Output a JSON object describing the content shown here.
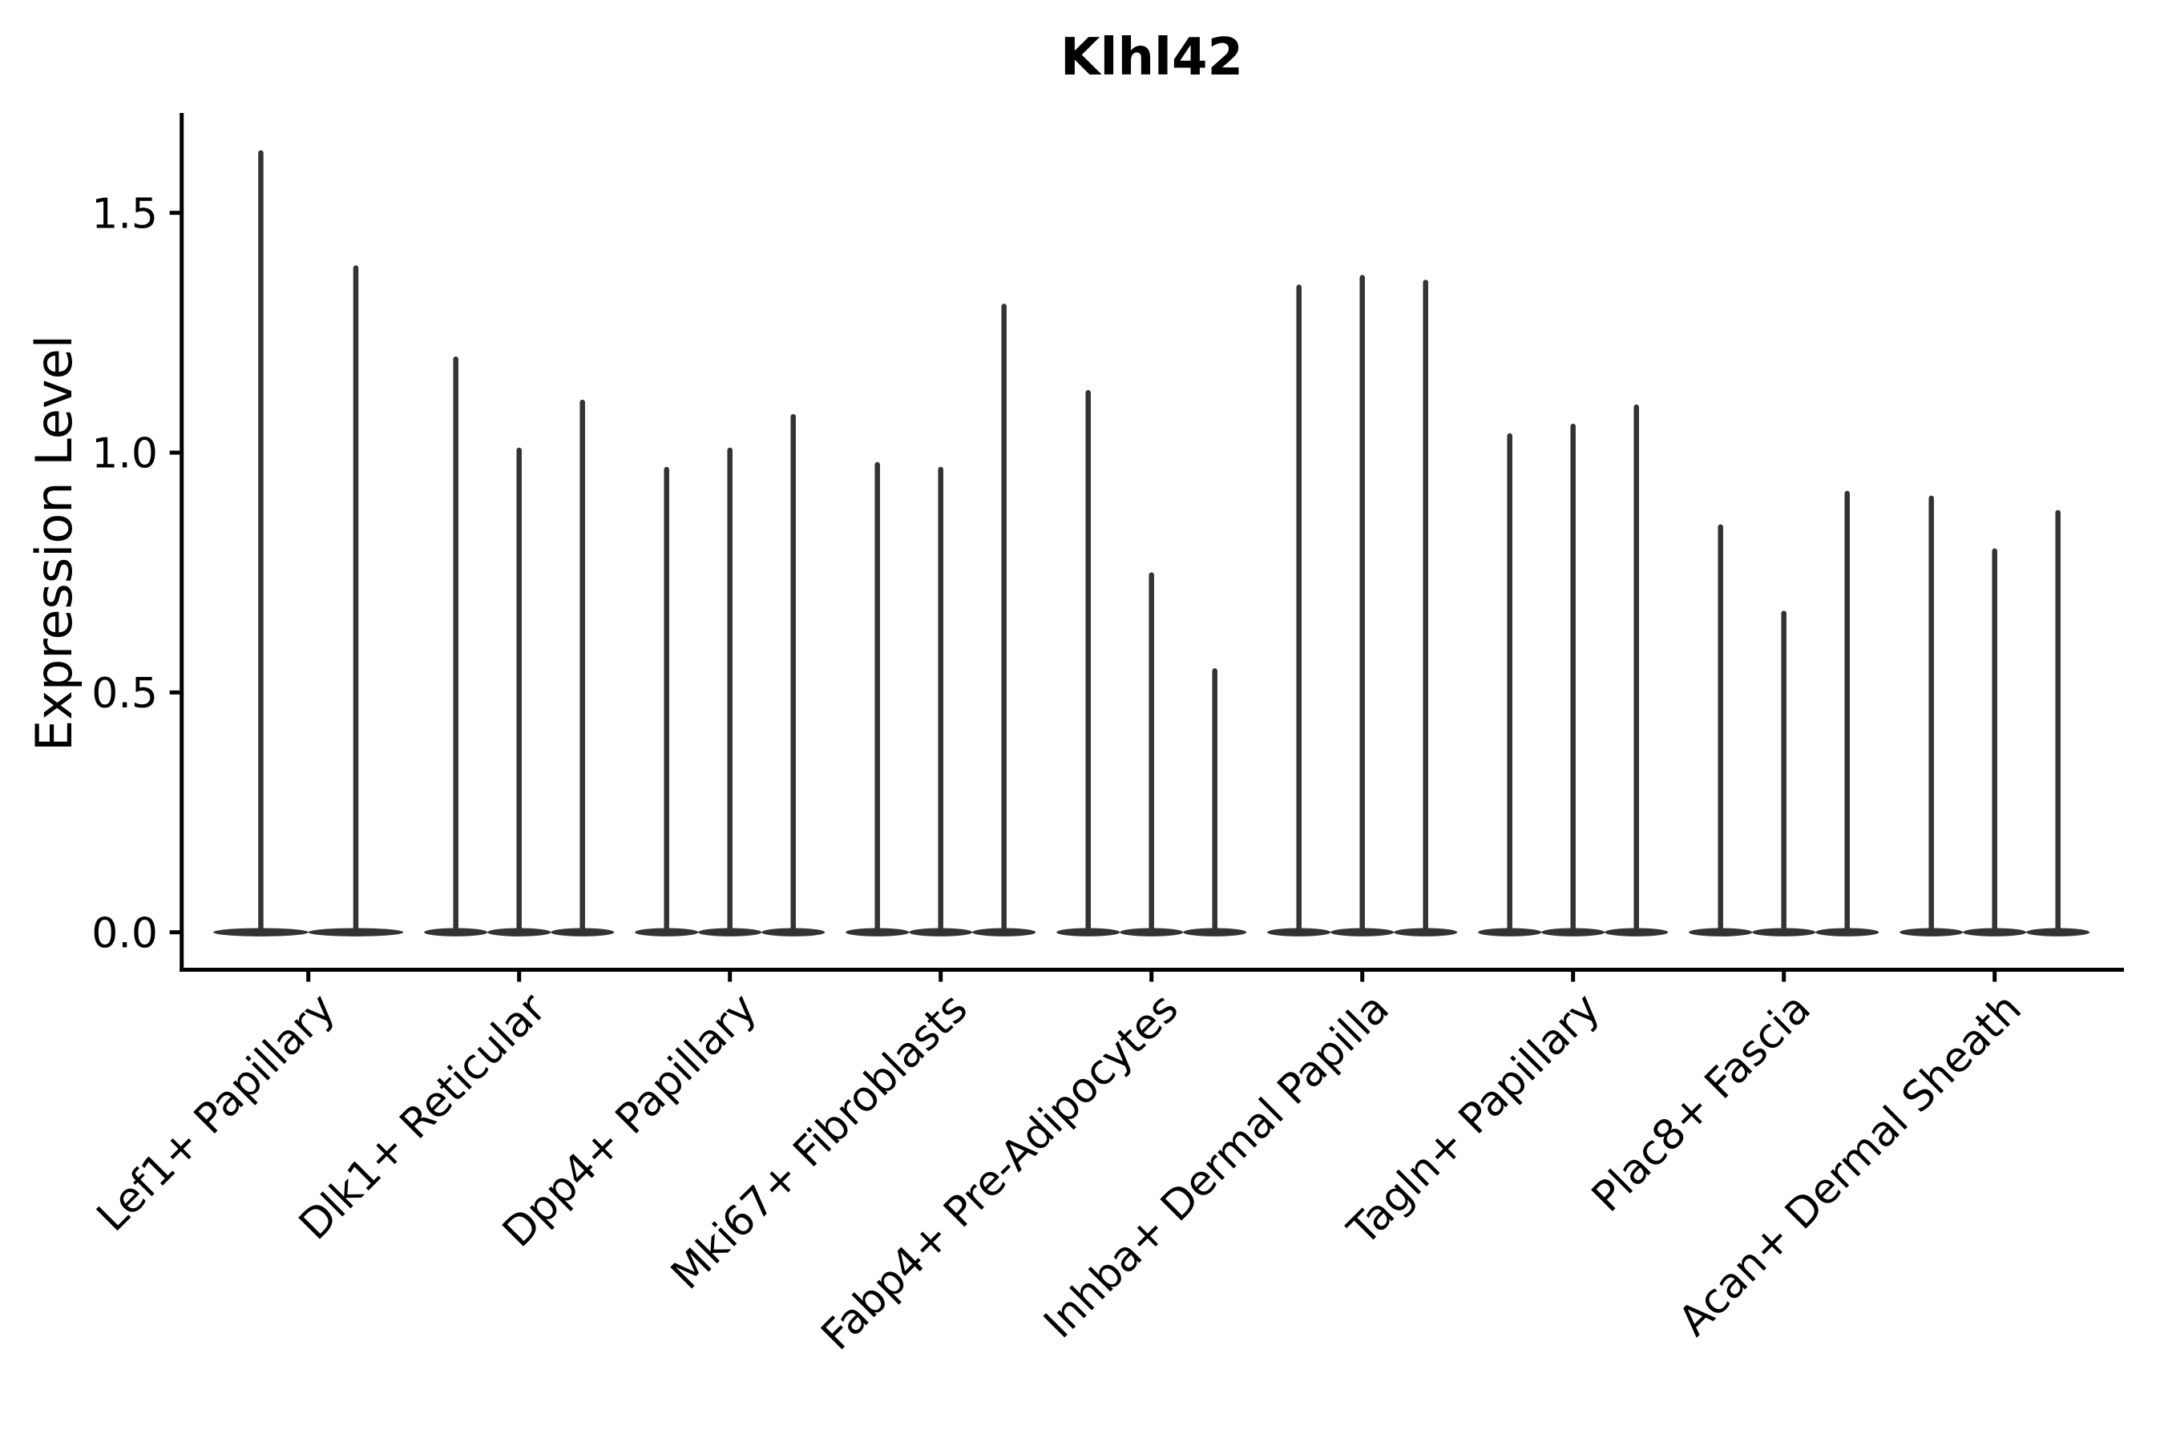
{
  "title": "Klhl42",
  "chart_data": {
    "type": "violin",
    "title": "Klhl42",
    "xlabel": "",
    "ylabel": "Expression Level",
    "grid": false,
    "legend": null,
    "ylim": [
      -0.08,
      1.71
    ],
    "baseline_value": 0,
    "y_tick_values": [
      0.0,
      0.5,
      1.0,
      1.5
    ],
    "y_tick_labels": [
      "0.0",
      "0.5",
      "1.0",
      "1.5"
    ],
    "categories": [
      "Lef1+ Papillary",
      "Dlk1+ Reticular",
      "Dpp4+ Papillary",
      "Mki67+ Fibroblasts",
      "Fabp4+ Pre-Adipocytes",
      "Inhba+ Dermal Papilla",
      "Tagln+ Papillary",
      "Plac8+ Fascia",
      "Acan+ Dermal Sheath"
    ],
    "groups": [
      {
        "category": "Lef1+ Papillary",
        "violin_max_values": [
          1.63,
          1.39
        ]
      },
      {
        "category": "Dlk1+ Reticular",
        "violin_max_values": [
          1.2,
          1.01,
          1.11
        ]
      },
      {
        "category": "Dpp4+ Papillary",
        "violin_max_values": [
          0.97,
          1.01,
          1.08
        ]
      },
      {
        "category": "Mki67+ Fibroblasts",
        "violin_max_values": [
          0.98,
          0.97,
          1.31
        ]
      },
      {
        "category": "Fabp4+ Pre-Adipocytes",
        "violin_max_values": [
          1.13,
          0.75,
          0.55
        ]
      },
      {
        "category": "Inhba+ Dermal Papilla",
        "violin_max_values": [
          1.35,
          1.37,
          1.36
        ]
      },
      {
        "category": "Tagln+ Papillary",
        "violin_max_values": [
          1.04,
          1.06,
          1.1
        ]
      },
      {
        "category": "Plac8+ Fascia",
        "violin_max_values": [
          0.85,
          0.67,
          0.92
        ]
      },
      {
        "category": "Acan+ Dermal Sheath",
        "violin_max_values": [
          0.91,
          0.8,
          0.88
        ]
      }
    ],
    "colors": {
      "violin": "#333333",
      "axis": "#000000",
      "background": "#ffffff"
    }
  }
}
